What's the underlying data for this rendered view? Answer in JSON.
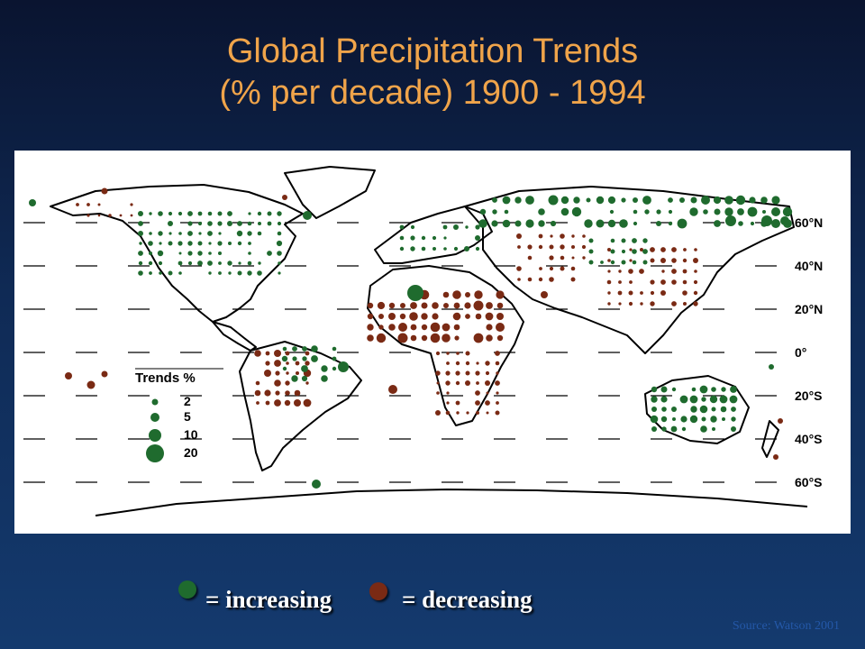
{
  "title": {
    "line1": "Global Precipitation Trends",
    "line2": "(% per decade) 1900 - 1994"
  },
  "map": {
    "latitude_labels": [
      "60°N",
      "40°N",
      "20°N",
      "0°",
      "20°S",
      "40°S",
      "60°S"
    ],
    "legend": {
      "title": "Trends %",
      "sizes": [
        "2",
        "5",
        "10",
        "20"
      ]
    }
  },
  "key": {
    "increasing_label": "= increasing",
    "decreasing_label": "= decreasing",
    "increasing_color": "#1f6b2e",
    "decreasing_color": "#7a2a14"
  },
  "source": "Source: Watson 2001"
}
